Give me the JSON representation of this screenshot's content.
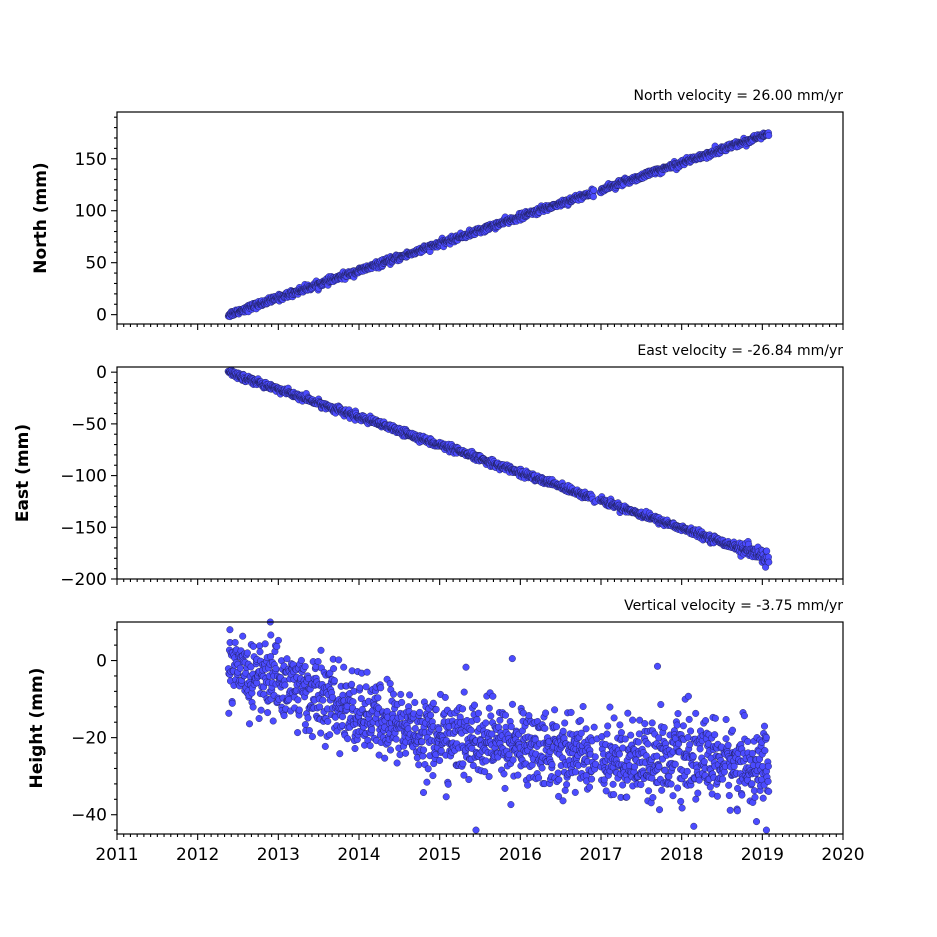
{
  "chart_data": [
    {
      "type": "scatter",
      "id": "north",
      "title": "North velocity = 26.00 mm/yr",
      "ylabel": "North (mm)",
      "xlim": [
        2011,
        2020
      ],
      "ylim": [
        -9,
        195
      ],
      "yticks": [
        0,
        50,
        100,
        150
      ],
      "ytick_labels": [
        "0",
        "50",
        "100",
        "150"
      ],
      "xticks": [
        2011,
        2012,
        2013,
        2014,
        2015,
        2016,
        2017,
        2018,
        2019,
        2020
      ],
      "xtick_labels": [],
      "marker_color": "#4b4bff",
      "edge_color": "#1a1a4a",
      "series": [
        {
          "x_range": [
            2012.38,
            2019.08
          ],
          "trend": {
            "slope_per_year": 26.0,
            "value_at_start": 0
          },
          "scatter_sd": 1.5,
          "sample_points": [
            [
              2012.38,
              0
            ],
            [
              2013.0,
              16
            ],
            [
              2014.0,
              42
            ],
            [
              2015.0,
              68
            ],
            [
              2016.0,
              94
            ],
            [
              2016.9,
              116
            ],
            [
              2017.0,
              120
            ],
            [
              2018.0,
              146
            ],
            [
              2019.08,
              175
            ]
          ]
        }
      ]
    },
    {
      "type": "scatter",
      "id": "east",
      "title": "East velocity = -26.84 mm/yr",
      "ylabel": "East (mm)",
      "xlim": [
        2011,
        2020
      ],
      "ylim": [
        -200,
        5
      ],
      "yticks": [
        0,
        -50,
        -100,
        -150,
        -200
      ],
      "ytick_labels": [
        "0",
        "−50",
        "−100",
        "−150",
        "−200"
      ],
      "xticks": [
        2011,
        2012,
        2013,
        2014,
        2015,
        2016,
        2017,
        2018,
        2019,
        2020
      ],
      "xtick_labels": [],
      "marker_color": "#4b4bff",
      "edge_color": "#1a1a4a",
      "series": [
        {
          "x_range": [
            2012.38,
            2019.08
          ],
          "trend": {
            "slope_per_year": -26.84,
            "value_at_start": 0
          },
          "scatter_sd": 1.6,
          "sample_points": [
            [
              2012.38,
              0
            ],
            [
              2013.0,
              -17
            ],
            [
              2014.0,
              -45
            ],
            [
              2015.0,
              -72
            ],
            [
              2016.0,
              -99
            ],
            [
              2016.9,
              -124
            ],
            [
              2017.0,
              -128
            ],
            [
              2018.0,
              -155
            ],
            [
              2018.8,
              -178
            ],
            [
              2019.08,
              -185
            ]
          ]
        }
      ]
    },
    {
      "type": "scatter",
      "id": "height",
      "title": "Vertical velocity = -3.75 mm/yr",
      "ylabel": "Height (mm)",
      "xlim": [
        2011,
        2020
      ],
      "ylim": [
        -45,
        10
      ],
      "yticks": [
        0,
        -20,
        -40
      ],
      "ytick_labels": [
        "0",
        "−20",
        "−40"
      ],
      "xticks": [
        2011,
        2012,
        2013,
        2014,
        2015,
        2016,
        2017,
        2018,
        2019,
        2020
      ],
      "xtick_labels": [
        "2011",
        "2012",
        "2013",
        "2014",
        "2015",
        "2016",
        "2017",
        "2018",
        "2019",
        "2020"
      ],
      "marker_color": "#4b4bff",
      "edge_color": "#1a1a4a",
      "series": [
        {
          "x_range": [
            2012.38,
            2019.08
          ],
          "trend_points": [
            [
              2012.38,
              -3
            ],
            [
              2013.0,
              -5
            ],
            [
              2014.0,
              -14
            ],
            [
              2015.0,
              -20
            ],
            [
              2016.0,
              -22
            ],
            [
              2017.0,
              -25
            ],
            [
              2018.0,
              -25
            ],
            [
              2019.08,
              -28
            ]
          ],
          "scatter_sd": 5,
          "sample_points": [
            [
              2012.4,
              8
            ],
            [
              2012.9,
              10
            ],
            [
              2015.45,
              -44
            ],
            [
              2018.15,
              -43
            ],
            [
              2019.05,
              -44
            ],
            [
              2017.7,
              -1.5
            ],
            [
              2015.9,
              0.5
            ]
          ]
        }
      ]
    }
  ]
}
